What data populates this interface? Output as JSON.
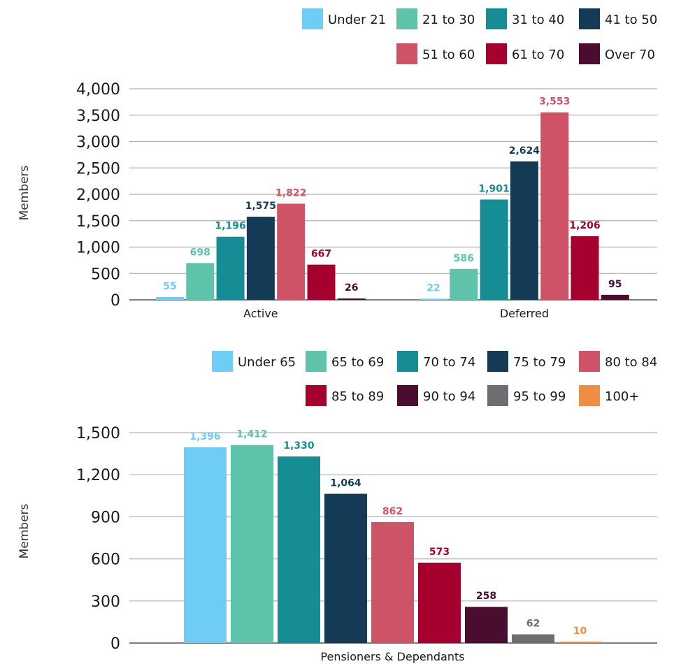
{
  "chart_data": [
    {
      "type": "bar",
      "title": "",
      "ylabel": "Members",
      "xlabel": "",
      "ylim": [
        0,
        4000
      ],
      "yticks": [
        "0",
        "500",
        "1,000",
        "1,500",
        "2,000",
        "2,500",
        "3,000",
        "3,500",
        "4,000"
      ],
      "categories": [
        "Active",
        "Deferred"
      ],
      "legend": "top-right",
      "grid": true,
      "series": [
        {
          "name": "Under 21",
          "color": "#6fcdf5",
          "values": [
            55,
            22
          ],
          "labels": [
            "55",
            "22"
          ]
        },
        {
          "name": "21 to 30",
          "color": "#5ec3aa",
          "values": [
            698,
            586
          ],
          "labels": [
            "698",
            "586"
          ]
        },
        {
          "name": "31 to 40",
          "color": "#168d95",
          "values": [
            1196,
            1901
          ],
          "labels": [
            "1,196",
            "1,901"
          ]
        },
        {
          "name": "41 to 50",
          "color": "#153a55",
          "values": [
            1575,
            2624
          ],
          "labels": [
            "1,575",
            "2,624"
          ]
        },
        {
          "name": "51 to 60",
          "color": "#cf5366",
          "values": [
            1822,
            3553
          ],
          "labels": [
            "1,822",
            "3,553"
          ]
        },
        {
          "name": "61 to 70",
          "color": "#a6002f",
          "values": [
            667,
            1206
          ],
          "labels": [
            "667",
            "1,206"
          ]
        },
        {
          "name": "Over 70",
          "color": "#4a0d2f",
          "values": [
            26,
            95
          ],
          "labels": [
            "26",
            "95"
          ]
        }
      ]
    },
    {
      "type": "bar",
      "title": "",
      "ylabel": "Members",
      "xlabel": "",
      "ylim": [
        0,
        1500
      ],
      "yticks": [
        "0",
        "300",
        "600",
        "900",
        "1,200",
        "1,500"
      ],
      "categories": [
        "Pensioners & Dependants"
      ],
      "legend": "top-right",
      "grid": true,
      "series": [
        {
          "name": "Under 65",
          "color": "#6fcdf5",
          "values": [
            1396
          ],
          "labels": [
            "1,396"
          ]
        },
        {
          "name": "65 to 69",
          "color": "#5ec3aa",
          "values": [
            1412
          ],
          "labels": [
            "1,412"
          ]
        },
        {
          "name": "70 to 74",
          "color": "#168d95",
          "values": [
            1330
          ],
          "labels": [
            "1,330"
          ]
        },
        {
          "name": "75 to 79",
          "color": "#153a55",
          "values": [
            1064
          ],
          "labels": [
            "1,064"
          ]
        },
        {
          "name": "80 to 84",
          "color": "#cf5366",
          "values": [
            862
          ],
          "labels": [
            "862"
          ]
        },
        {
          "name": "85 to 89",
          "color": "#a6002f",
          "values": [
            573
          ],
          "labels": [
            "573"
          ]
        },
        {
          "name": "90 to 94",
          "color": "#4a0d2f",
          "values": [
            258
          ],
          "labels": [
            "258"
          ]
        },
        {
          "name": "95 to 99",
          "color": "#6d6e71",
          "values": [
            62
          ],
          "labels": [
            "62"
          ]
        },
        {
          "name": "100+",
          "color": "#ef8d45",
          "values": [
            10
          ],
          "labels": [
            "10"
          ]
        }
      ]
    }
  ]
}
